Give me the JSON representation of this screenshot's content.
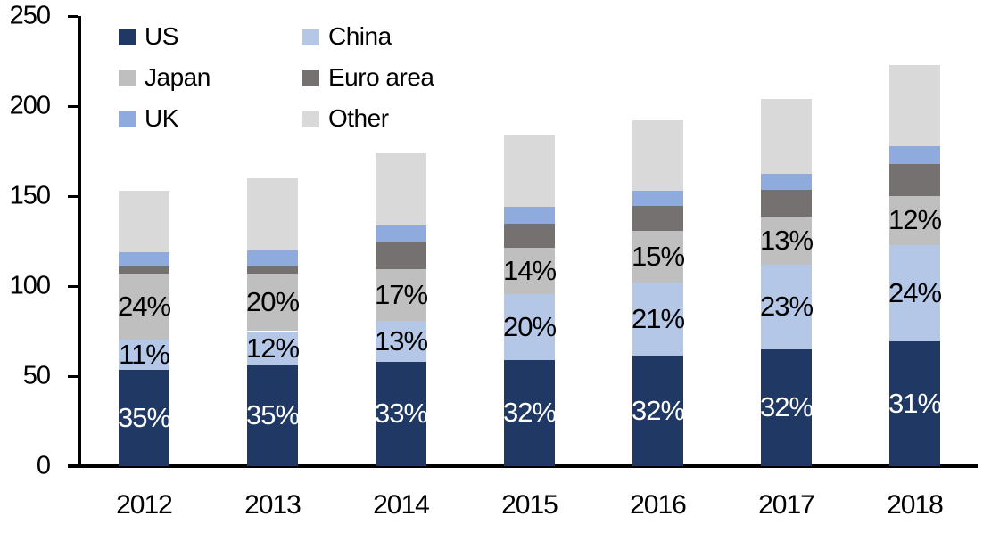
{
  "chart_data": {
    "type": "bar",
    "variant": "stacked-column",
    "title": "",
    "categories": [
      "2012",
      "2013",
      "2014",
      "2015",
      "2016",
      "2017",
      "2018"
    ],
    "series": [
      {
        "name": "US",
        "color": "#1f3864",
        "values": [
          53.5,
          56,
          58,
          59,
          61.5,
          65,
          69.5
        ],
        "labels": [
          "35%",
          "35%",
          "33%",
          "32%",
          "32%",
          "32%",
          "31%"
        ],
        "label_color": "#ffffff"
      },
      {
        "name": "China",
        "color": "#b4c7e7",
        "values": [
          17,
          19,
          22.5,
          36.5,
          40.5,
          47,
          53.5
        ],
        "labels": [
          "11%",
          "12%",
          "13%",
          "20%",
          "21%",
          "23%",
          "24%"
        ],
        "label_color": "#000000"
      },
      {
        "name": "Japan",
        "color": "#bfbfbf",
        "values": [
          36.5,
          32,
          29,
          26,
          28.5,
          26.5,
          27
        ],
        "labels": [
          "24%",
          "20%",
          "17%",
          "14%",
          "15%",
          "13%",
          "12%"
        ],
        "label_color": "#000000"
      },
      {
        "name": "Euro area",
        "color": "#767171",
        "values": [
          4,
          4,
          15,
          13,
          14,
          15,
          18
        ],
        "labels": null,
        "label_color": "#000000"
      },
      {
        "name": "UK",
        "color": "#8faadc",
        "values": [
          8,
          9,
          9,
          9.5,
          8.5,
          9,
          9.5
        ],
        "labels": null,
        "label_color": "#000000"
      },
      {
        "name": "Other",
        "color": "#d9d9d9",
        "values": [
          34,
          40,
          40.5,
          39.5,
          39,
          41.5,
          45.5
        ],
        "labels": null,
        "label_color": "#000000"
      }
    ],
    "totals": [
      153,
      160,
      174,
      183.5,
      192,
      204,
      223
    ],
    "xlabel": "",
    "ylabel": "",
    "ylim": [
      0,
      250
    ],
    "yticks": [
      0,
      50,
      100,
      150,
      200,
      250
    ],
    "grid": "off",
    "legend": {
      "position": "top-left",
      "columns": 2,
      "items": [
        "US",
        "China",
        "Japan",
        "Euro area",
        "UK",
        "Other"
      ]
    },
    "axis_color": "#000000"
  }
}
